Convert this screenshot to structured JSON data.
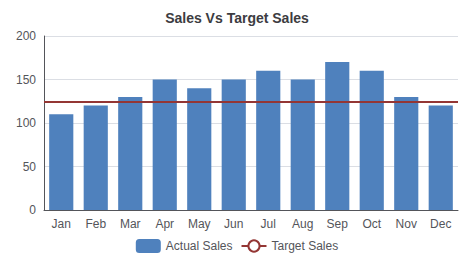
{
  "chart_data": {
    "type": "bar",
    "title": "Sales Vs Target Sales",
    "categories": [
      "Jan",
      "Feb",
      "Mar",
      "Apr",
      "May",
      "Jun",
      "Jul",
      "Aug",
      "Sep",
      "Oct",
      "Nov",
      "Dec"
    ],
    "series": [
      {
        "name": "Actual Sales",
        "type": "bar",
        "color": "#4f81bd",
        "values": [
          110,
          120,
          130,
          150,
          140,
          150,
          160,
          150,
          170,
          160,
          130,
          120
        ]
      },
      {
        "name": "Target Sales",
        "type": "hline",
        "color": "#943634",
        "value": 125
      }
    ],
    "ylim": [
      0,
      200
    ],
    "yticks": [
      0,
      50,
      100,
      150,
      200
    ],
    "grid": true,
    "legend": "bottom"
  }
}
